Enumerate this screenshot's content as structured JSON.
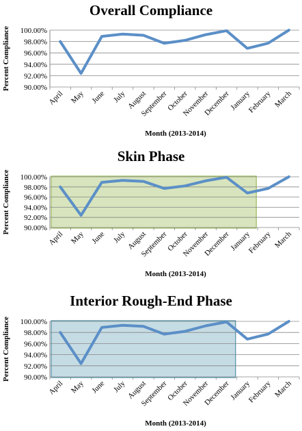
{
  "chart_data": [
    {
      "type": "line",
      "title": "Overall Compliance",
      "xlabel": "Month (2013-2014)",
      "ylabel": "Percent Compliance",
      "categories": [
        "April",
        "May",
        "June",
        "July",
        "August",
        "September",
        "October",
        "November",
        "December",
        "January",
        "February",
        "March"
      ],
      "values": [
        98.0,
        92.4,
        98.9,
        99.3,
        99.1,
        97.7,
        98.2,
        99.2,
        99.9,
        96.8,
        97.7,
        100.0
      ],
      "ylim": [
        90,
        100
      ],
      "yticks": [
        "90.00%",
        "92.00%",
        "94.00%",
        "96.00%",
        "98.00%",
        "100.00%"
      ],
      "grid": true,
      "line_color": "#5b8fc7"
    },
    {
      "type": "line",
      "title": "Skin Phase",
      "xlabel": "Month (2013-2014)",
      "ylabel": "Percent Compliance",
      "categories": [
        "April",
        "May",
        "June",
        "July",
        "August",
        "September",
        "October",
        "November",
        "December",
        "January",
        "February",
        "March"
      ],
      "values": [
        98.0,
        92.4,
        98.9,
        99.3,
        99.1,
        97.7,
        98.2,
        99.2,
        99.9,
        96.8,
        97.7,
        100.0
      ],
      "ylim": [
        90,
        100
      ],
      "yticks": [
        "90.00%",
        "92.00%",
        "94.00%",
        "96.00%",
        "98.00%",
        "100.00%"
      ],
      "grid": true,
      "line_color": "#5b8fc7",
      "highlight": {
        "from": "April",
        "to": "January",
        "fill": "#d7e4bd",
        "stroke": "#9bbb59"
      }
    },
    {
      "type": "line",
      "title": "Interior Rough-End Phase",
      "xlabel": "Month (2013-2014)",
      "ylabel": "Percent Compliance",
      "categories": [
        "April",
        "May",
        "June",
        "July",
        "August",
        "September",
        "October",
        "November",
        "December",
        "January",
        "February",
        "March"
      ],
      "values": [
        98.0,
        92.4,
        98.9,
        99.3,
        99.1,
        97.7,
        98.2,
        99.2,
        99.9,
        96.8,
        97.7,
        100.0
      ],
      "ylim": [
        90,
        100
      ],
      "yticks": [
        "90.00%",
        "92.00%",
        "94.00%",
        "96.00%",
        "98.00%",
        "100.00%"
      ],
      "grid": true,
      "line_color": "#5b8fc7",
      "highlight": {
        "from": "April",
        "to": "December",
        "fill": "#c6dce4",
        "stroke": "#4f8fa8"
      }
    }
  ]
}
